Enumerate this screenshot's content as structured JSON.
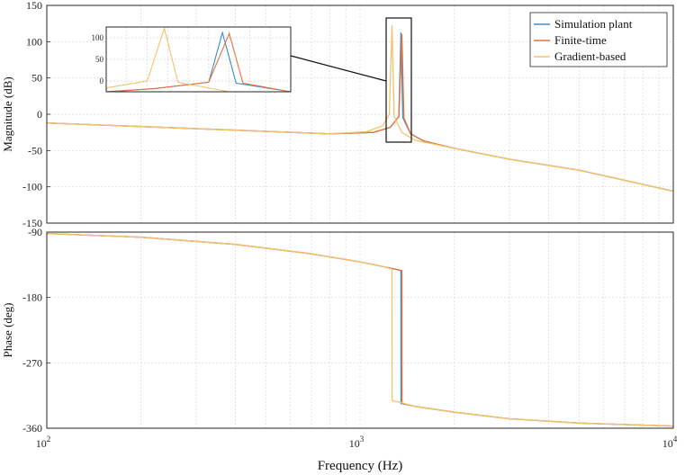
{
  "chart_data": [
    {
      "type": "line",
      "title": "",
      "xlabel": "Frequency (Hz)",
      "ylabel": "Magnitude (dB)",
      "xscale": "log",
      "xlim": [
        100,
        10000
      ],
      "ylim": [
        -150,
        150
      ],
      "yticks": [
        -150,
        -100,
        -50,
        0,
        50,
        100,
        150
      ],
      "xtick_labels": [
        {
          "base": "10",
          "exp": "2"
        },
        {
          "base": "10",
          "exp": "3"
        },
        {
          "base": "10",
          "exp": "4"
        }
      ],
      "grid": true,
      "legend": "top-right",
      "series": [
        {
          "name": "Simulation plant",
          "color": "#3a8fc8",
          "x": [
            100,
            200,
            400,
            800,
            1100,
            1250,
            1330,
            1350,
            1370,
            1450,
            1600,
            2000,
            3000,
            5000,
            10000
          ],
          "y": [
            -12,
            -17,
            -22,
            -27,
            -25,
            -18,
            -3,
            112,
            -5,
            -27,
            -37,
            -47,
            -62,
            -77,
            -106
          ]
        },
        {
          "name": "Finite-time",
          "color": "#e8713c",
          "x": [
            100,
            200,
            400,
            800,
            1100,
            1250,
            1330,
            1360,
            1380,
            1450,
            1600,
            2000,
            3000,
            5000,
            10000
          ],
          "y": [
            -12,
            -17,
            -22,
            -27,
            -25,
            -18,
            -3,
            110,
            -5,
            -27,
            -37,
            -47,
            -62,
            -77,
            -106
          ]
        },
        {
          "name": "Gradient-based",
          "color": "#f2c36b",
          "x": [
            100,
            200,
            400,
            800,
            1050,
            1180,
            1240,
            1265,
            1285,
            1360,
            1500,
            2000,
            3000,
            5000,
            10000
          ],
          "y": [
            -12,
            -17,
            -22,
            -27,
            -24,
            -16,
            0,
            122,
            -3,
            -25,
            -36,
            -47,
            -62,
            -77,
            -106
          ]
        }
      ],
      "inset": {
        "yticks": [
          0,
          50,
          100
        ],
        "note": "zoomed view of the resonance peak"
      }
    },
    {
      "type": "line",
      "title": "",
      "xlabel": "Frequency (Hz)",
      "ylabel": "Phase (deg)",
      "xscale": "log",
      "xlim": [
        100,
        10000
      ],
      "ylim": [
        -360,
        -90
      ],
      "yticks": [
        -360,
        -270,
        -180,
        -90
      ],
      "grid": true,
      "series": [
        {
          "name": "Simulation plant",
          "color": "#3a8fc8",
          "x": [
            100,
            200,
            400,
            700,
            1000,
            1200,
            1350,
            1351,
            1500,
            2000,
            3000,
            5000,
            10000
          ],
          "y": [
            -92,
            -97,
            -107,
            -120,
            -131,
            -138,
            -143,
            -326,
            -330,
            -338,
            -347,
            -353,
            -357
          ]
        },
        {
          "name": "Finite-time",
          "color": "#e8713c",
          "x": [
            100,
            200,
            400,
            700,
            1000,
            1200,
            1360,
            1361,
            1500,
            2000,
            3000,
            5000,
            10000
          ],
          "y": [
            -92,
            -97,
            -107,
            -120,
            -131,
            -138,
            -143,
            -326,
            -330,
            -338,
            -347,
            -353,
            -357
          ]
        },
        {
          "name": "Gradient-based",
          "color": "#f2c36b",
          "x": [
            100,
            200,
            400,
            700,
            1000,
            1200,
            1265,
            1266,
            1360,
            1500,
            2000,
            3000,
            5000,
            10000
          ],
          "y": [
            -92,
            -97,
            -107,
            -120,
            -131,
            -138,
            -141,
            -322,
            -325,
            -330,
            -338,
            -347,
            -353,
            -357
          ]
        }
      ]
    }
  ]
}
